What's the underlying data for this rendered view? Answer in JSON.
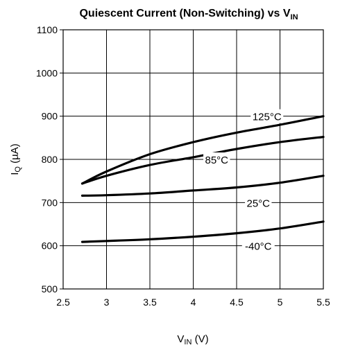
{
  "chart_data": {
    "type": "line",
    "title": "Quiescent Current (Non-Switching) vs V",
    "title_sub": "IN",
    "xlabel": "V",
    "xlabel_sub": "IN",
    "xlabel_unit": " (V)",
    "ylabel": "I",
    "ylabel_sub": "Q",
    "ylabel_unit": " (µA)",
    "xlim": [
      2.5,
      5.5
    ],
    "ylim": [
      500,
      1100
    ],
    "x_ticks": [
      2.5,
      3,
      3.5,
      4,
      4.5,
      5,
      5.5
    ],
    "x_tick_labels": [
      "2.5",
      "3",
      "3.5",
      "4",
      "4.5",
      "5",
      "5.5"
    ],
    "y_ticks": [
      500,
      600,
      700,
      800,
      900,
      1000,
      1100
    ],
    "y_tick_labels": [
      "500",
      "600",
      "700",
      "800",
      "900",
      "1000",
      "1100"
    ],
    "grid": true,
    "series": [
      {
        "name": "125°C",
        "x": [
          2.72,
          3.0,
          3.5,
          4.0,
          4.5,
          5.0,
          5.5
        ],
        "values": [
          744,
          772,
          812,
          840,
          862,
          880,
          900
        ]
      },
      {
        "name": "85°C",
        "x": [
          2.72,
          3.0,
          3.5,
          4.0,
          4.5,
          5.0,
          5.5
        ],
        "values": [
          744,
          762,
          787,
          805,
          824,
          840,
          852
        ]
      },
      {
        "name": "25°C",
        "x": [
          2.72,
          3.0,
          3.5,
          4.0,
          4.5,
          5.0,
          5.5
        ],
        "values": [
          716,
          717,
          721,
          728,
          735,
          746,
          762
        ]
      },
      {
        "name": "-40°C",
        "x": [
          2.72,
          3.0,
          3.5,
          4.0,
          4.5,
          5.0,
          5.5
        ],
        "values": [
          609,
          611,
          615,
          621,
          629,
          640,
          656
        ]
      }
    ],
    "annotations": [
      {
        "text": "125°C",
        "x": 4.85,
        "y": 900
      },
      {
        "text": "85°C",
        "x": 4.27,
        "y": 800
      },
      {
        "text": "25°C",
        "x": 4.75,
        "y": 700
      },
      {
        "text": "-40°C",
        "x": 4.75,
        "y": 600
      }
    ]
  }
}
